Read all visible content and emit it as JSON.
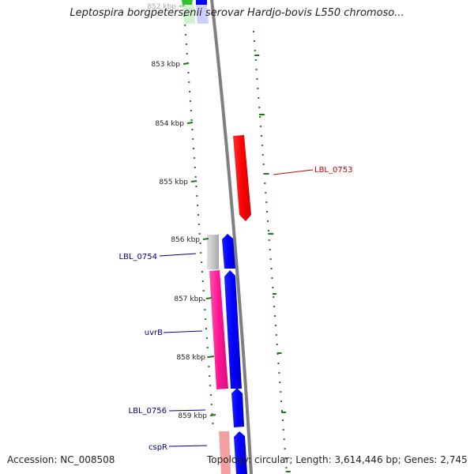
{
  "title": "Leptospira borgpetersenii serovar Hardjo-bovis L550 chromoso...",
  "footer": {
    "accession": "Accession: NC_008508",
    "summary": "Topology: circular; Length: 3,614,446 bp; Genes: 2,745"
  },
  "colors": {
    "backbone": "#808080",
    "tick": "#1a7a1a",
    "forward": "#0000ff",
    "reverse": "#ff0000",
    "gene_label_blue": "#00008b",
    "gene_label_red": "#cc0000",
    "pink": "#ff1493",
    "gray": "#c8c8c8"
  },
  "map": {
    "kbp_ticks": [
      "852 kbp",
      "853 kbp",
      "854 kbp",
      "855 kbp",
      "856 kbp",
      "857 kbp",
      "858 kbp",
      "859 kbp"
    ],
    "features": [
      {
        "name": "LBL_0753",
        "strand": "reverse",
        "track": "outer-right",
        "color": "red"
      },
      {
        "name": "LBL_0754",
        "strand": "forward",
        "track": "inner",
        "color": "gray"
      },
      {
        "name": "uvrB",
        "strand": "forward",
        "track": "inner",
        "color": "pink"
      },
      {
        "name": "LBL_0756",
        "strand": "forward",
        "track": "main",
        "color": "blue"
      },
      {
        "name": "cspR",
        "strand": "forward",
        "track": "inner",
        "color": "pink-light"
      }
    ],
    "labels": {
      "LBL_0753": "LBL_0753",
      "LBL_0754": "LBL_0754",
      "uvrB": "uvrB",
      "LBL_0756": "LBL_0756",
      "cspR": "cspR"
    }
  }
}
